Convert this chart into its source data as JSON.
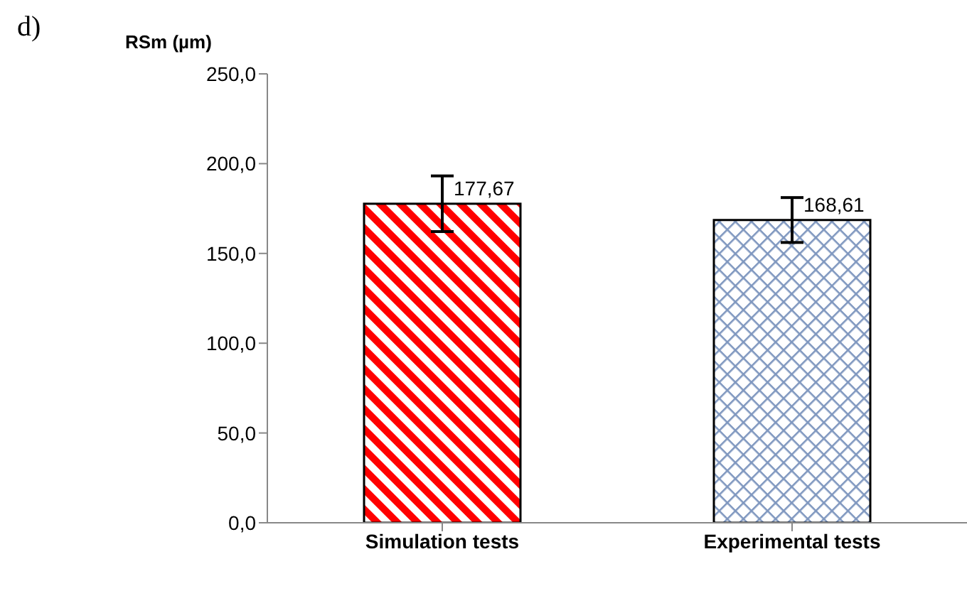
{
  "chart_data": {
    "type": "bar",
    "title": "d)",
    "ylabel": "RSm (µm)",
    "categories": [
      "Simulation tests",
      "Experimental tests"
    ],
    "values": [
      177.67,
      168.61
    ],
    "colors": [
      "#ff0000",
      "#7f97bf"
    ],
    "errors": [
      15.5,
      12.5
    ],
    "value_labels": [
      "177,67",
      "168,61"
    ],
    "ylim": [
      0,
      250
    ],
    "yticks": [
      {
        "value": 0,
        "label": "0,0"
      },
      {
        "value": 50,
        "label": "50,0"
      },
      {
        "value": 100,
        "label": "100,0"
      },
      {
        "value": 150,
        "label": "150,0"
      },
      {
        "value": 200,
        "label": "200,0"
      },
      {
        "value": 250,
        "label": "250,0"
      }
    ],
    "grid": false
  }
}
